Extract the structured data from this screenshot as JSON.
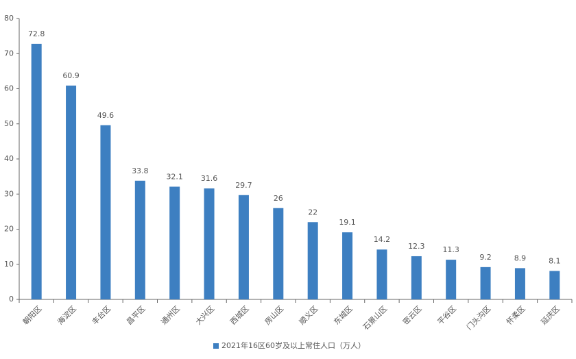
{
  "chart_data": {
    "type": "bar",
    "categories": [
      "朝阳区",
      "海淀区",
      "丰台区",
      "昌平区",
      "通州区",
      "大兴区",
      "西城区",
      "房山区",
      "顺义区",
      "东城区",
      "石景山区",
      "密云区",
      "平谷区",
      "门头沟区",
      "怀柔区",
      "延庆区"
    ],
    "series": [
      {
        "name": "2021年16区60岁及以上常住人口（万人）",
        "color": "#3d7fc1",
        "values": [
          72.8,
          60.9,
          49.6,
          33.8,
          32.1,
          31.6,
          29.7,
          26,
          22,
          19.1,
          14.2,
          12.3,
          11.3,
          9.2,
          8.9,
          8.1
        ]
      }
    ],
    "ylim": [
      0,
      80
    ],
    "yticks": [
      0,
      10,
      20,
      30,
      40,
      50,
      60,
      70,
      80
    ],
    "grid": false,
    "legend": "bottom"
  }
}
